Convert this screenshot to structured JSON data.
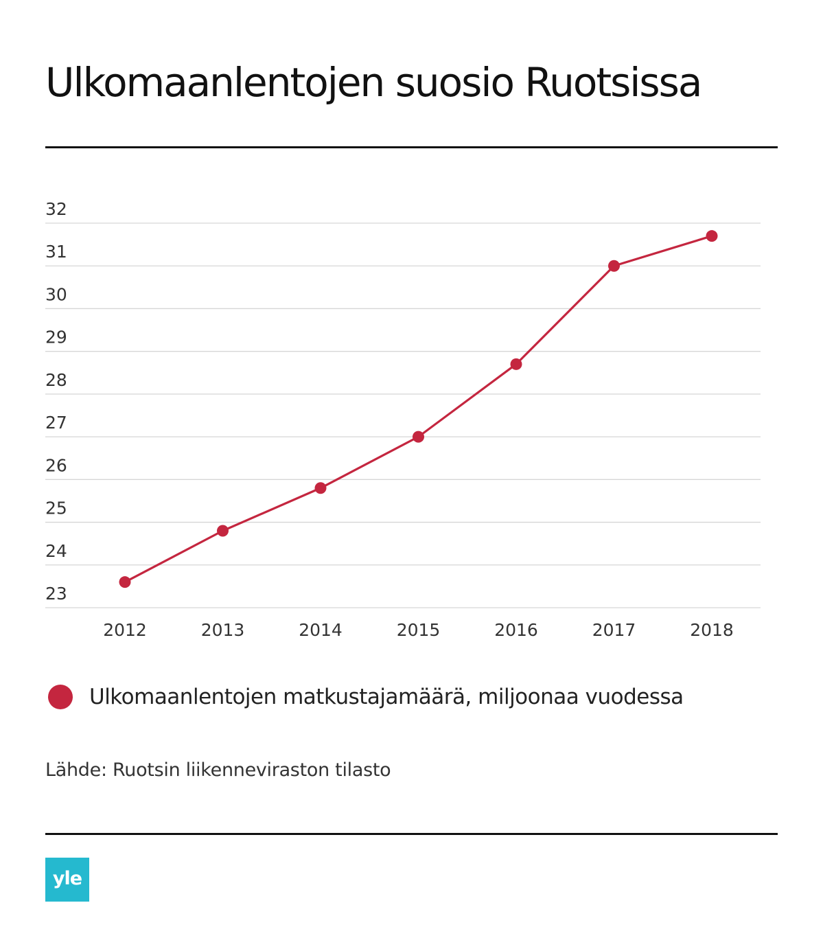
{
  "title": "Ulkomaanlentojen suosio Ruotsissa",
  "chart_data": {
    "type": "line",
    "title": "Ulkomaanlentojen suosio Ruotsissa",
    "categories": [
      "2012",
      "2013",
      "2014",
      "2015",
      "2016",
      "2017",
      "2018"
    ],
    "series": [
      {
        "name": "Ulkomaanlentojen matkustajamäärä, miljoonaa vuodessa",
        "values": [
          23.6,
          24.8,
          25.8,
          27.0,
          28.7,
          31.0,
          31.7
        ],
        "color": "#c4263f"
      }
    ],
    "yticks": [
      "23",
      "24",
      "25",
      "26",
      "27",
      "28",
      "29",
      "30",
      "31",
      "32"
    ],
    "ylim": [
      23,
      32
    ],
    "xlabel": "",
    "ylabel": "",
    "grid": true,
    "legend": "bottom-left"
  },
  "legend": {
    "label": "Ulkomaanlentojen matkustajamäärä, miljoonaa vuodessa",
    "color": "#c4263f"
  },
  "source": "Lähde: Ruotsin liikenneviraston tilasto",
  "logo": {
    "text": "yle",
    "color": "#25b9cf"
  }
}
